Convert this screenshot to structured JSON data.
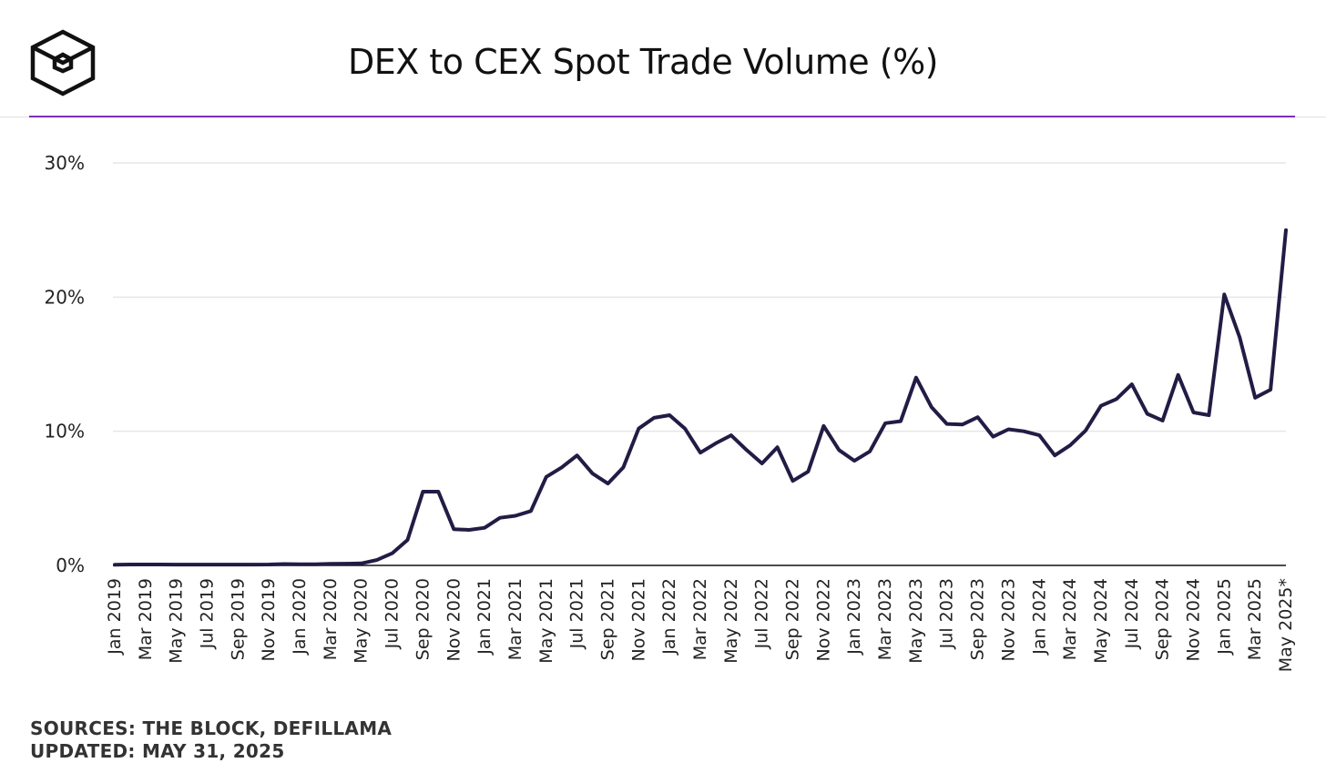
{
  "header": {
    "title": "DEX to CEX Spot Trade Volume (%)",
    "logo_icon": "the-block-cube-icon"
  },
  "colors": {
    "accent_rule": "#7d2fbf",
    "line": "#221c45",
    "grid": "#e6e6e6"
  },
  "footer": {
    "sources": "SOURCES: THE BLOCK, DEFILLAMA",
    "updated": "UPDATED: MAY 31, 2025"
  },
  "chart_data": {
    "type": "line",
    "title": "DEX to CEX Spot Trade Volume (%)",
    "xlabel": "",
    "ylabel": "",
    "ylim": [
      0,
      30
    ],
    "yticks": [
      "0%",
      "10%",
      "20%",
      "30%"
    ],
    "grid": true,
    "x_tick_labels": [
      "Jan 2019",
      "Mar 2019",
      "May 2019",
      "Jul 2019",
      "Sep 2019",
      "Nov 2019",
      "Jan 2020",
      "Mar 2020",
      "May 2020",
      "Jul 2020",
      "Sep 2020",
      "Nov 2020",
      "Jan 2021",
      "Mar 2021",
      "May 2021",
      "Jul 2021",
      "Sep 2021",
      "Nov 2021",
      "Jan 2022",
      "Mar 2022",
      "May 2022",
      "Jul 2022",
      "Sep 2022",
      "Nov 2022",
      "Jan 2023",
      "Mar 2023",
      "May 2023",
      "Jul 2023",
      "Sep 2023",
      "Nov 2023",
      "Jan 2024",
      "Mar 2024",
      "May 2024",
      "Jul 2024",
      "Sep 2024",
      "Nov 2024",
      "Jan 2025",
      "Mar 2025",
      "May 2025*"
    ],
    "series": [
      {
        "x": [
          "Jan 2019",
          "Feb 2019",
          "Mar 2019",
          "Apr 2019",
          "May 2019",
          "Jun 2019",
          "Jul 2019",
          "Aug 2019",
          "Sep 2019",
          "Oct 2019",
          "Nov 2019",
          "Dec 2019",
          "Jan 2020",
          "Feb 2020",
          "Mar 2020",
          "Apr 2020",
          "May 2020",
          "Jun 2020",
          "Jul 2020",
          "Aug 2020",
          "Sep 2020",
          "Oct 2020",
          "Nov 2020",
          "Dec 2020",
          "Jan 2021",
          "Feb 2021",
          "Mar 2021",
          "Apr 2021",
          "May 2021",
          "Jun 2021",
          "Jul 2021",
          "Aug 2021",
          "Sep 2021",
          "Oct 2021",
          "Nov 2021",
          "Dec 2021",
          "Jan 2022",
          "Feb 2022",
          "Mar 2022",
          "Apr 2022",
          "May 2022",
          "Jun 2022",
          "Jul 2022",
          "Aug 2022",
          "Sep 2022",
          "Oct 2022",
          "Nov 2022",
          "Dec 2022",
          "Jan 2023",
          "Feb 2023",
          "Mar 2023",
          "Apr 2023",
          "May 2023",
          "Jun 2023",
          "Jul 2023",
          "Aug 2023",
          "Sep 2023",
          "Oct 2023",
          "Nov 2023",
          "Dec 2023",
          "Jan 2024",
          "Feb 2024",
          "Mar 2024",
          "Apr 2024",
          "May 2024",
          "Jun 2024",
          "Jul 2024",
          "Aug 2024",
          "Sep 2024",
          "Oct 2024",
          "Nov 2024",
          "Dec 2024",
          "Jan 2025",
          "Feb 2025",
          "Mar 2025",
          "Apr 2025",
          "May 2025*"
        ],
        "values": [
          0.05,
          0.07,
          0.07,
          0.07,
          0.06,
          0.06,
          0.06,
          0.06,
          0.06,
          0.06,
          0.07,
          0.1,
          0.08,
          0.09,
          0.12,
          0.13,
          0.15,
          0.4,
          0.9,
          1.9,
          5.5,
          5.5,
          2.7,
          2.65,
          2.8,
          3.55,
          3.7,
          4.05,
          6.6,
          7.3,
          8.2,
          6.85,
          6.1,
          7.3,
          10.2,
          11.0,
          11.2,
          10.2,
          8.4,
          9.1,
          9.7,
          8.6,
          7.6,
          8.8,
          6.3,
          7.0,
          10.4,
          8.6,
          7.8,
          8.5,
          10.6,
          10.75,
          14.0,
          11.8,
          10.55,
          10.5,
          11.05,
          9.6,
          10.15,
          10.0,
          9.7,
          8.2,
          8.95,
          10.05,
          11.9,
          12.4,
          13.5,
          11.3,
          10.8,
          14.2,
          11.4,
          11.2,
          20.2,
          17.0,
          12.5,
          13.1,
          25.0
        ]
      }
    ]
  }
}
